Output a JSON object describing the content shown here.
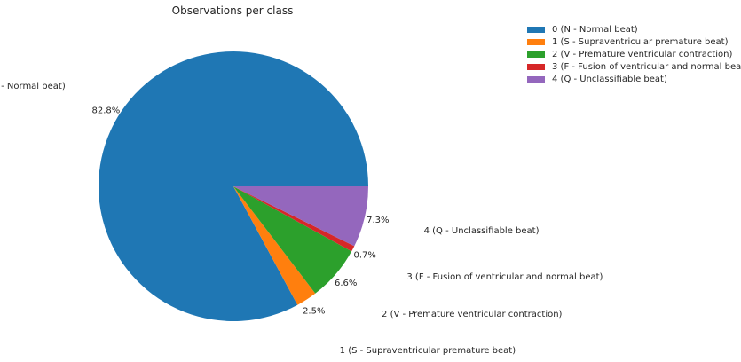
{
  "chart_data": {
    "type": "pie",
    "title": "Observations per class",
    "categories": [
      "0 (N - Normal beat)",
      "1 (S - Supraventricular premature beat)",
      "2 (V - Premature ventricular contraction)",
      "3 (F - Fusion of ventricular and normal beat)",
      "4 (Q - Unclassifiable beat)"
    ],
    "values": [
      82.8,
      2.5,
      6.6,
      0.7,
      7.3
    ],
    "pct_labels": [
      "82.8%",
      "2.5%",
      "6.6%",
      "0.7%",
      "7.3%"
    ],
    "colors": [
      "#1f77b4",
      "#ff7f0e",
      "#2ca02c",
      "#d62728",
      "#9467bd"
    ],
    "legend": {
      "placement": "top-right",
      "entries": [
        "0 (N - Normal beat)",
        "1 (S - Supraventricular premature beat)",
        "2 (V - Premature ventricular contraction)",
        "3 (F - Fusion of ventricular and normal beat)",
        "4 (Q - Unclassifiable beat)"
      ]
    }
  }
}
